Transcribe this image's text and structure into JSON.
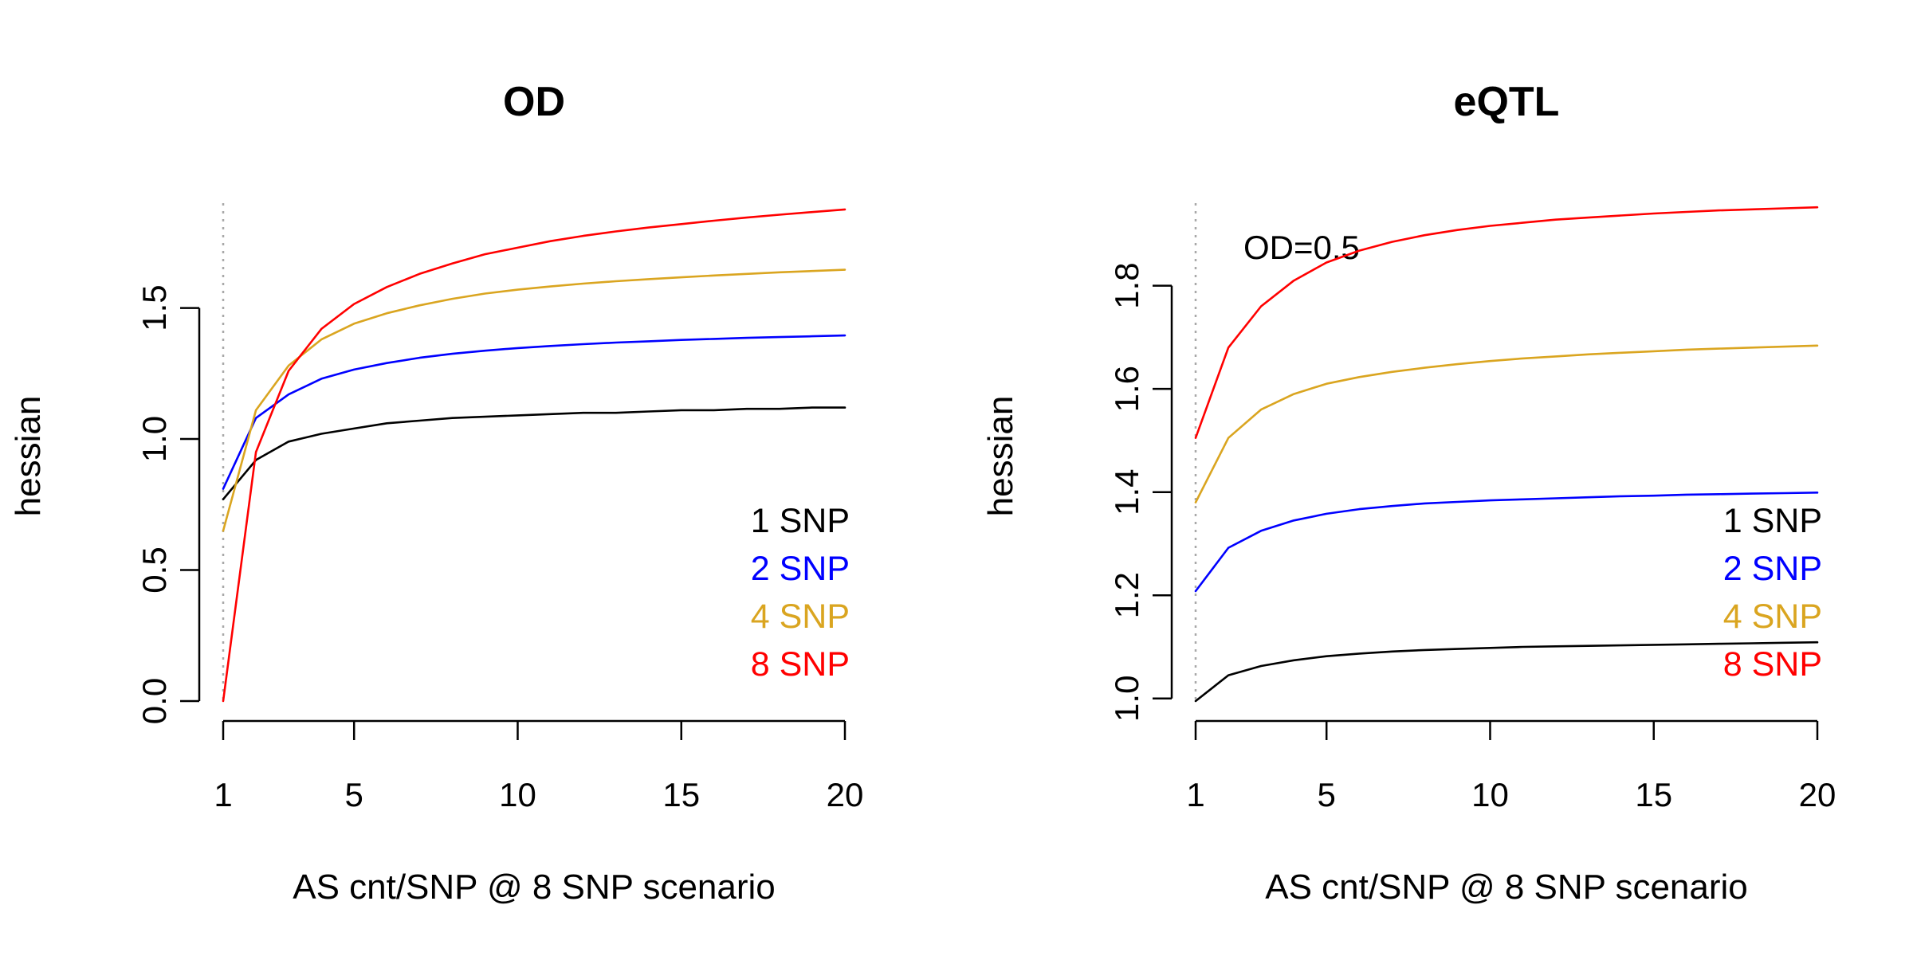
{
  "chart_data": [
    {
      "type": "line",
      "title": "OD",
      "xlabel": "AS cnt/SNP @ 8 SNP scenario",
      "ylabel": "hessian",
      "xlim": [
        1,
        20
      ],
      "ylim": [
        0,
        1.9
      ],
      "xticks": [
        1,
        5,
        10,
        15,
        20
      ],
      "xtick_labels": [
        "1",
        "5",
        "10",
        "15",
        "20"
      ],
      "yticks": [
        0,
        0.5,
        1,
        1.5
      ],
      "ytick_labels": [
        "0.0",
        "0.5",
        "1.0",
        "1.5"
      ],
      "vline_x": 1,
      "annotation": "",
      "legend_position": "bottom-right",
      "x": [
        1,
        2,
        3,
        4,
        5,
        6,
        7,
        8,
        9,
        10,
        11,
        12,
        13,
        14,
        15,
        16,
        17,
        18,
        19,
        20
      ],
      "series": [
        {
          "name": "1 SNP",
          "color": "#000000",
          "values": [
            0.77,
            0.92,
            0.99,
            1.02,
            1.04,
            1.06,
            1.07,
            1.08,
            1.085,
            1.09,
            1.095,
            1.1,
            1.1,
            1.105,
            1.11,
            1.11,
            1.115,
            1.115,
            1.12,
            1.12
          ]
        },
        {
          "name": "2 SNP",
          "color": "#0000ff",
          "values": [
            0.81,
            1.08,
            1.17,
            1.23,
            1.265,
            1.29,
            1.31,
            1.325,
            1.337,
            1.347,
            1.355,
            1.362,
            1.368,
            1.373,
            1.378,
            1.382,
            1.386,
            1.389,
            1.392,
            1.395
          ]
        },
        {
          "name": "4 SNP",
          "color": "#daa520",
          "values": [
            0.65,
            1.11,
            1.28,
            1.38,
            1.44,
            1.48,
            1.51,
            1.535,
            1.555,
            1.57,
            1.582,
            1.593,
            1.602,
            1.61,
            1.617,
            1.624,
            1.63,
            1.636,
            1.641,
            1.646
          ]
        },
        {
          "name": "8 SNP",
          "color": "#ff0000",
          "values": [
            0.0,
            0.95,
            1.26,
            1.42,
            1.515,
            1.58,
            1.63,
            1.67,
            1.705,
            1.73,
            1.755,
            1.775,
            1.792,
            1.807,
            1.82,
            1.833,
            1.845,
            1.856,
            1.866,
            1.876
          ]
        }
      ]
    },
    {
      "type": "line",
      "title": "eQTL",
      "xlabel": "AS cnt/SNP @ 8 SNP scenario",
      "ylabel": "hessian",
      "xlim": [
        1,
        20
      ],
      "ylim": [
        0.995,
        1.96
      ],
      "xticks": [
        1,
        5,
        10,
        15,
        20
      ],
      "xtick_labels": [
        "1",
        "5",
        "10",
        "15",
        "20"
      ],
      "yticks": [
        1.0,
        1.2,
        1.4,
        1.6,
        1.8
      ],
      "ytick_labels": [
        "1.0",
        "1.2",
        "1.4",
        "1.6",
        "1.8"
      ],
      "vline_x": 1,
      "annotation": "OD=0.5",
      "legend_position": "bottom-right",
      "x": [
        1,
        2,
        3,
        4,
        5,
        6,
        7,
        8,
        9,
        10,
        11,
        12,
        13,
        14,
        15,
        16,
        17,
        18,
        19,
        20
      ],
      "series": [
        {
          "name": "1 SNP",
          "color": "#000000",
          "values": [
            0.995,
            1.045,
            1.063,
            1.074,
            1.082,
            1.087,
            1.091,
            1.094,
            1.096,
            1.098,
            1.1,
            1.101,
            1.102,
            1.103,
            1.104,
            1.105,
            1.106,
            1.107,
            1.108,
            1.109
          ]
        },
        {
          "name": "2 SNP",
          "color": "#0000ff",
          "values": [
            1.208,
            1.292,
            1.325,
            1.345,
            1.358,
            1.367,
            1.373,
            1.378,
            1.381,
            1.384,
            1.386,
            1.388,
            1.39,
            1.392,
            1.393,
            1.395,
            1.396,
            1.397,
            1.398,
            1.399
          ]
        },
        {
          "name": "4 SNP",
          "color": "#daa520",
          "values": [
            1.38,
            1.505,
            1.56,
            1.59,
            1.61,
            1.623,
            1.633,
            1.641,
            1.648,
            1.654,
            1.659,
            1.663,
            1.667,
            1.67,
            1.673,
            1.676,
            1.678,
            1.68,
            1.682,
            1.684
          ]
        },
        {
          "name": "8 SNP",
          "color": "#ff0000",
          "values": [
            1.505,
            1.68,
            1.76,
            1.81,
            1.845,
            1.868,
            1.885,
            1.898,
            1.908,
            1.916,
            1.922,
            1.928,
            1.932,
            1.936,
            1.94,
            1.943,
            1.946,
            1.948,
            1.95,
            1.952
          ]
        }
      ]
    }
  ]
}
